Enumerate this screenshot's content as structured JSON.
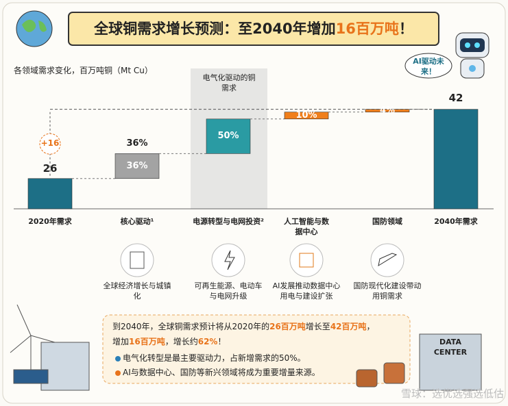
{
  "chart_data": {
    "type": "waterfall",
    "title_parts": [
      "全球铜需求增长预测：至2040年增加",
      "16百万吨",
      "！"
    ],
    "y_label": "各领域需求变化，百万吨铜（Mt Cu）",
    "categories": [
      "2020年需求",
      "核心驱动¹",
      "电源转型与电网投资²",
      "人工智能与数据中心",
      "国防领域",
      "2040年需求"
    ],
    "start": 26,
    "end": 42,
    "increase": 16,
    "increase_label": "+16",
    "shares": [
      36,
      50,
      10,
      4
    ],
    "share_labels": [
      "36%",
      "50%",
      "10%",
      "4%"
    ],
    "colors": [
      "#1d6f86",
      "#a3a3a3",
      "#2a9ba3",
      "#f07f1c",
      "#f07f1c",
      "#1d6f86"
    ],
    "highlight": {
      "index": 2,
      "label": "电气化驱动的铜需求"
    },
    "ylim": [
      19,
      44
    ]
  },
  "drivers": [
    {
      "label": "全球经济增长与城镇化"
    },
    {
      "label": "可再生能源、电动车与电网升级"
    },
    {
      "label": "AI发展推动数据中心用电与建设扩张"
    },
    {
      "label": "国防现代化建设带动用铜需求"
    }
  ],
  "summary": {
    "line1": [
      "到2040年，全球铜需求预计将从2020年的",
      "26百万吨",
      "增长至",
      "42百万吨",
      "，"
    ],
    "line2": [
      "增加",
      "16百万吨",
      "，增长约",
      "62%",
      "！"
    ],
    "bullets": [
      "电气化转型是最主要驱动力，占新增需求的50%。",
      "AI与数据中心、国防等新兴领域将成为重要增量来源。"
    ]
  },
  "robot_bubble": "AI驱动未来！",
  "data_center": "DATA CENTER",
  "watermark": "雪球：选优选强选低估"
}
